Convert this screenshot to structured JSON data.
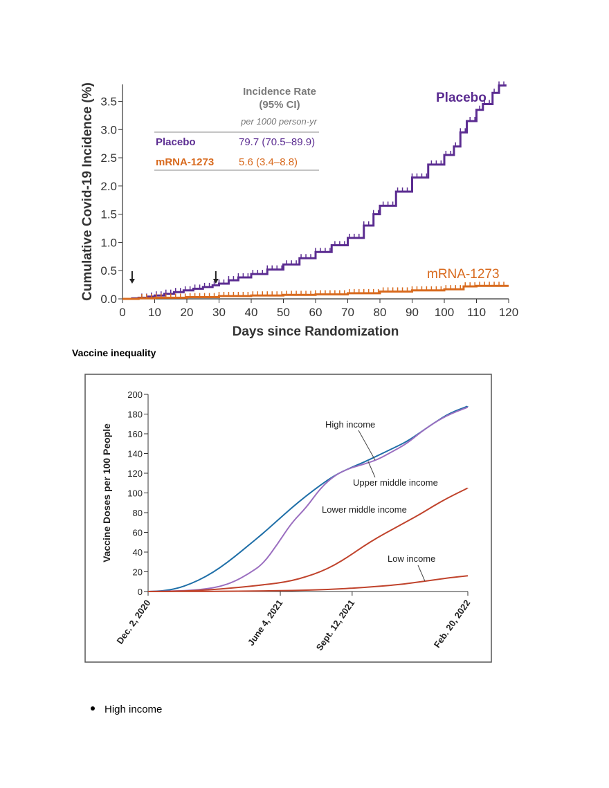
{
  "chart_data": [
    {
      "type": "line",
      "title": "",
      "xlabel": "Days since Randomization",
      "ylabel": "Cumulative Covid-19 Incidence (%)",
      "xlim": [
        0,
        120
      ],
      "ylim": [
        0,
        3.8
      ],
      "x_ticks": [
        "0",
        "10",
        "20",
        "30",
        "40",
        "50",
        "60",
        "70",
        "80",
        "90",
        "100",
        "110",
        "120"
      ],
      "y_ticks": [
        "0.0",
        "0.5",
        "1.0",
        "1.5",
        "2.0",
        "2.5",
        "3.0",
        "3.5"
      ],
      "series": [
        {
          "name": "Placebo",
          "color": "#5b2c91",
          "x": [
            0,
            3,
            5,
            8,
            10,
            13,
            16,
            19,
            22,
            25,
            28,
            30,
            33,
            36,
            40,
            45,
            50,
            55,
            60,
            65,
            70,
            75,
            78,
            80,
            85,
            90,
            95,
            100,
            103,
            105,
            107,
            110,
            112,
            115,
            117,
            119
          ],
          "y": [
            0,
            0.01,
            0.02,
            0.04,
            0.06,
            0.09,
            0.12,
            0.15,
            0.18,
            0.21,
            0.24,
            0.27,
            0.33,
            0.38,
            0.44,
            0.52,
            0.61,
            0.72,
            0.83,
            0.95,
            1.08,
            1.3,
            1.5,
            1.65,
            1.9,
            2.15,
            2.38,
            2.55,
            2.7,
            2.95,
            3.15,
            3.35,
            3.45,
            3.65,
            3.78,
            3.8
          ]
        },
        {
          "name": "mRNA-1273",
          "color": "#d86a1e",
          "x": [
            0,
            3,
            5,
            10,
            20,
            30,
            40,
            50,
            60,
            70,
            80,
            90,
            100,
            106,
            110,
            120
          ],
          "y": [
            0,
            0.0,
            0.01,
            0.02,
            0.03,
            0.05,
            0.06,
            0.07,
            0.08,
            0.1,
            0.13,
            0.15,
            0.17,
            0.22,
            0.23,
            0.23
          ]
        }
      ],
      "arrows_at_day": [
        3,
        29
      ],
      "legend_table": {
        "header_line1": "Incidence Rate",
        "header_line2": "(95% CI)",
        "unit": "per 1000 person-yr",
        "rows": [
          {
            "label": "Placebo",
            "value": "79.7 (70.5–89.9)"
          },
          {
            "label": "mRNA-1273",
            "value": "5.6 (3.4–8.8)"
          }
        ]
      },
      "series_labels": {
        "placebo": "Placebo",
        "mrna": "mRNA-1273"
      }
    },
    {
      "type": "line",
      "title": "",
      "xlabel": "",
      "ylabel": "Vaccine Doses per 100 People",
      "xlim": [
        0,
        445
      ],
      "ylim": [
        0,
        200
      ],
      "y_ticks": [
        "0",
        "20",
        "40",
        "60",
        "80",
        "100",
        "120",
        "140",
        "160",
        "180",
        "200"
      ],
      "x_ticks": [
        {
          "label": "Dec. 2, 2020",
          "day": 0
        },
        {
          "label": "June 4, 2021",
          "day": 184
        },
        {
          "label": "Sept. 12, 2021",
          "day": 284
        },
        {
          "label": "Feb. 20, 2022",
          "day": 445
        }
      ],
      "series": [
        {
          "name": "High income",
          "color": "#1f6fa8",
          "x": [
            0,
            20,
            40,
            60,
            80,
            100,
            120,
            140,
            160,
            180,
            200,
            220,
            240,
            260,
            280,
            300,
            320,
            340,
            360,
            380,
            400,
            420,
            445
          ],
          "y": [
            0,
            0.5,
            3,
            8,
            15,
            24,
            35,
            47,
            59,
            72,
            85,
            97,
            108,
            118,
            125,
            131,
            138,
            145,
            152,
            162,
            172,
            181,
            188
          ]
        },
        {
          "name": "Upper middle income",
          "color": "#9b6fc0",
          "x": [
            0,
            20,
            40,
            60,
            80,
            100,
            120,
            140,
            160,
            180,
            200,
            220,
            240,
            260,
            280,
            300,
            320,
            340,
            360,
            380,
            400,
            420,
            445
          ],
          "y": [
            0,
            0.2,
            0.6,
            1.2,
            2.5,
            5,
            10,
            18,
            28,
            48,
            70,
            85,
            105,
            118,
            125,
            129,
            134,
            142,
            150,
            162,
            172,
            180,
            187
          ]
        },
        {
          "name": "Lower middle income",
          "color": "#c0432c",
          "x": [
            0,
            20,
            40,
            60,
            80,
            100,
            120,
            140,
            160,
            180,
            200,
            220,
            240,
            260,
            280,
            300,
            320,
            340,
            360,
            380,
            400,
            420,
            445
          ],
          "y": [
            0,
            0.1,
            0.3,
            0.8,
            1.5,
            2.5,
            3.8,
            5.2,
            6.8,
            8.5,
            11,
            15,
            20,
            27,
            36,
            46,
            55,
            63,
            71,
            79,
            88,
            96,
            105
          ]
        },
        {
          "name": "Low income",
          "color": "#c0432c",
          "x": [
            0,
            50,
            100,
            150,
            200,
            250,
            300,
            350,
            380,
            400,
            420,
            445
          ],
          "y": [
            0,
            0.05,
            0.2,
            0.5,
            1,
            2,
            4,
            7,
            10,
            12,
            14,
            16
          ]
        }
      ],
      "series_labels": {
        "high": "High income",
        "upper": "Upper middle income",
        "lower": "Lower middle income",
        "low": "Low income"
      }
    }
  ],
  "section_heading": "Vaccine inequality",
  "bullet_item": "High income"
}
